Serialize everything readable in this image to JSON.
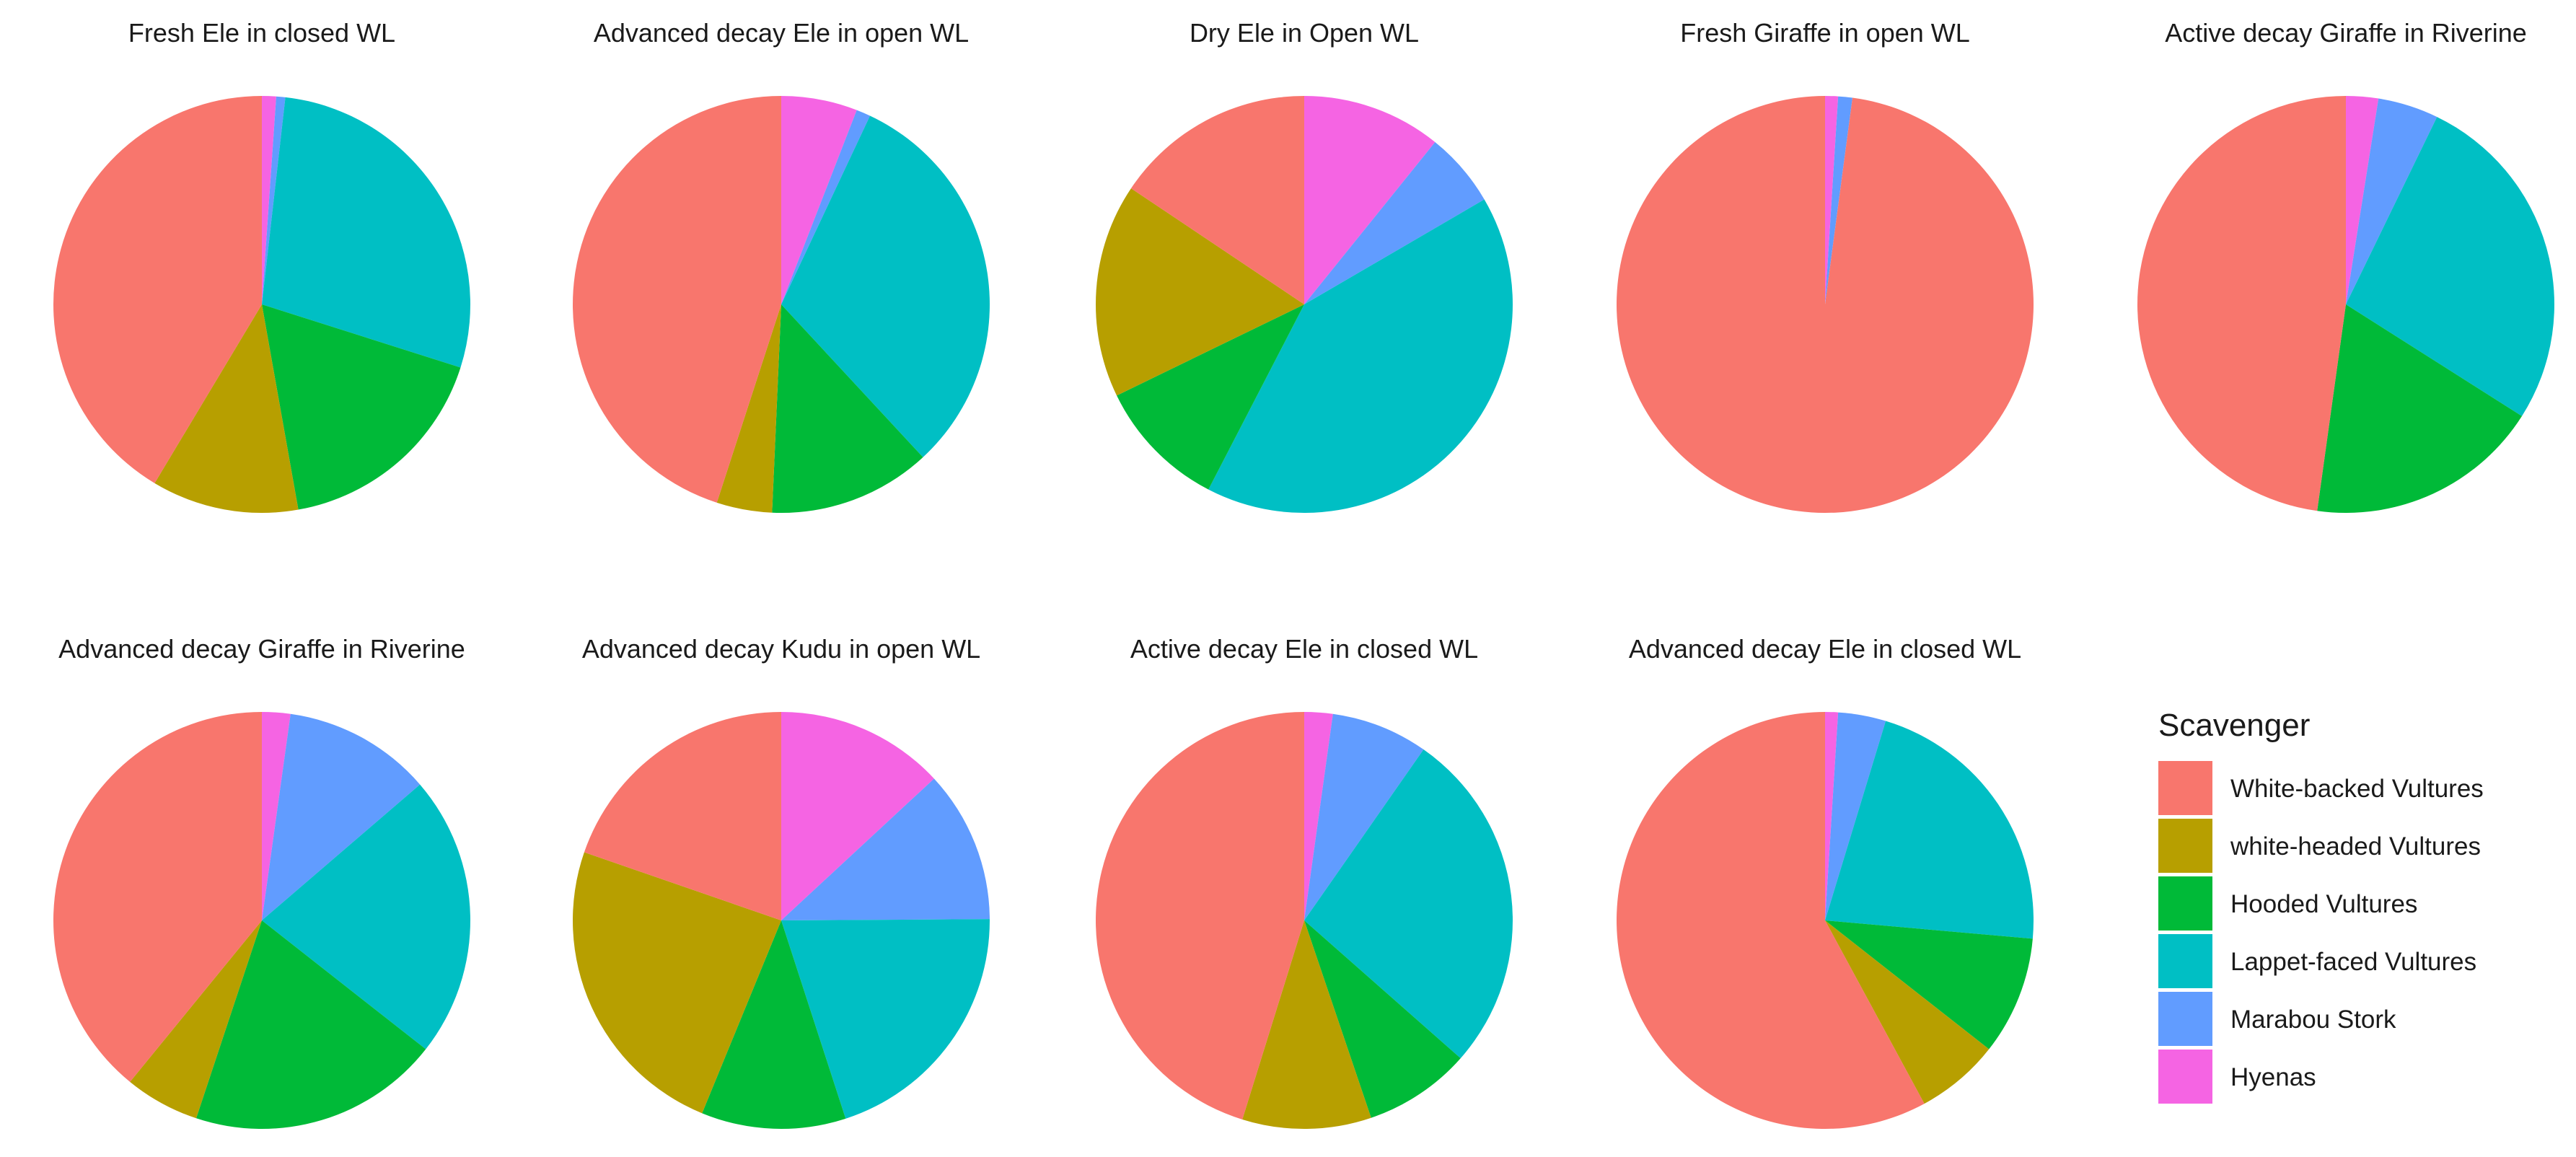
{
  "chart_data": {
    "type": "pie",
    "legend": {
      "title": "Scavenger",
      "placement": "right",
      "entries": [
        {
          "label": "White-backed Vultures",
          "color": "#F8766D"
        },
        {
          "label": "white-headed Vultures",
          "color": "#B79F00"
        },
        {
          "label": "Hooded Vultures",
          "color": "#00BA38"
        },
        {
          "label": "Lappet-faced Vultures",
          "color": "#00BFC4"
        },
        {
          "label": "Marabou Stork",
          "color": "#619CFF"
        },
        {
          "label": "Hyenas",
          "color": "#F564E3"
        }
      ]
    },
    "categories": [
      "White-backed Vultures",
      "white-headed Vultures",
      "Hooded Vultures",
      "Lappet-faced Vultures",
      "Marabou Stork",
      "Hyenas"
    ],
    "unit": "proportion",
    "panels": [
      {
        "title": "Fresh Ele in closed WL",
        "values": [
          0.414,
          0.114,
          0.173,
          0.281,
          0.007,
          0.011
        ]
      },
      {
        "title": "Advanced decay Ele in open WL",
        "values": [
          0.45,
          0.043,
          0.126,
          0.311,
          0.011,
          0.059
        ]
      },
      {
        "title": "Dry Ele in Open WL",
        "values": [
          0.156,
          0.166,
          0.102,
          0.41,
          0.058,
          0.108
        ]
      },
      {
        "title": "Fresh Giraffe in open WL",
        "values": [
          0.979,
          0.0,
          0.0,
          0.0,
          0.011,
          0.01
        ]
      },
      {
        "title": "Active decay Giraffe in Riverine",
        "values": [
          0.478,
          0.0,
          0.182,
          0.268,
          0.047,
          0.025
        ]
      },
      {
        "title": "Advanced decay Giraffe in Riverine",
        "values": [
          0.391,
          0.058,
          0.195,
          0.219,
          0.115,
          0.022
        ]
      },
      {
        "title": "Advanced decay Kudu in open WL",
        "values": [
          0.197,
          0.241,
          0.112,
          0.201,
          0.118,
          0.131
        ]
      },
      {
        "title": "Active decay Ele in closed WL",
        "values": [
          0.452,
          0.1,
          0.083,
          0.268,
          0.075,
          0.022
        ]
      },
      {
        "title": "Advanced decay Ele in closed WL",
        "values": [
          0.579,
          0.065,
          0.092,
          0.217,
          0.037,
          0.01
        ]
      }
    ]
  }
}
